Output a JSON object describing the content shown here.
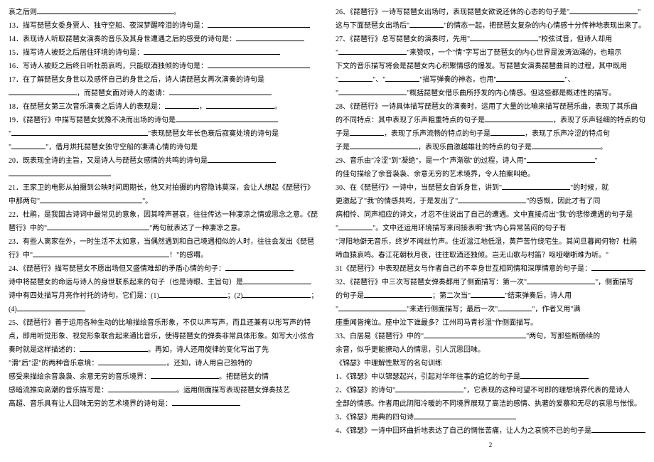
{
  "left": [
    "哀之后则________________________________。",
    "13．描写琵琶女委身贾人、独守空船、夜深梦醒啼泪的诗句是：________________________",
    "14．表现诗人听取琵琶女演奏的音乐及其身世遭遇之后的感受的诗句是：________________",
    "15．描写诗人被贬之后居住环境的诗句是：________________________________",
    "16．写诗人被贬之后终日听杜鹃哀鸣，只能取酒独倾的诗句是：________________________",
    "17．在了解琵琶女身世以及感怀自己的身世之后，诗人请琵琶女再次演奏的诗句是",
    "________________，而琵琶女面对诗人的邀请：________________________",
    "18．在琵琶女第三次音乐演奏之后诗人的表现是：________，________________。",
    "19．《琵琶行》中描写琵琶女犹豫不决而出场的诗句是________________________",
    "\"________________________________\"表现琵琶女年长色衰后寂寞处境的诗句是",
    "\"________\"，借月烘托琵琶女独守空船的凄清心情的诗句是",
    "20．既表现全诗的主旨，又是诗人与琵琶女感情的共鸣的诗句是________________",
    "________________________",
    "21．王家卫的电影从拍摄到公映时间周期长，他又对拍摄的内容隐讳莫深，会让人想起《琵琶行》",
    "中那两句\"________________________\"。",
    "22．杜鹃，是我国古诗词中最常见的意象，因其啼声甚哀，往往传达一种凄凉之情或思念之意。《琵",
    "琶行》中的\"________________________\"两句就表达了一种凄凉之意。",
    "23．有些人离家在外，一时生活不太如意，当偶然遇到和自己境遇相似的人时，往往会发出《琵琶",
    "行》中\"________________________________！\"的感喟。",
    "24、《琵琶行》描写琵琶女不愿出场但又盛情难却的矛盾心情的句子：________________",
    "诗中将琵琶女的命运与诗人的身世联系起来的句子（也是诗眼、主旨句）是________________",
    "诗中有四处描写月亮作衬托的诗句，它们是：(1)________________；(2)________________；(3)________",
    "(4)________________",
    "25、《琵琶行》善于运用各种生动的比喻描绘音乐形象，不仅以声写声，而且还兼有以形写声的特",
    "点，即用听觉形象、视觉形象联合起来通比音乐，使得琵琶女的弹奏非常具体形象。如写大小弦合",
    "奏时就是这样描述的：________________。再如，诗人还用旋律的变化写出了先",
    "\"滑\"后\"涩\"的两种音乐意境：________________。还如，诗人用自己独特的",
    "感受来描绘余音袅袅、余意无穷的音乐境界：________________。把琵琶女的情",
    "感暗流推向高潮的音乐描写是：________________。运用侧面描写表现琵琶女弹奏技艺",
    "高超、音乐具有让人回味无穷的艺术境界的诗句是：________________"
  ],
  "right": [
    "26、《琵琶行》一诗写琵琶女出场时，表现琵琶女欲说还休的心态的句子是\"________________\"",
    "这与下面琵琶女出场后\"________\"的情态一起，把琵琶女复杂的内心情感十分传神地表现出来了。",
    "27、《琵琶行》总写琵琶女的演奏时，先用\"________________\"校弦试音，但诗人却用",
    "\"________________\"来赞叹，一个\"情\"字写出了琵琶女的内心世界是波涛汹涌的，也暗示",
    "下文的音乐描写将会是琵琶女内心积聚情感的爆发。写琵琶女演奏琵琶曲目的过程，其中既用",
    "\"________\"、\"________\"描写弹奏的神态，也用\"________________\"、",
    "\"________________\"概括琵琶女借乐曲所抒发的内心情感。但这些都是概述性的描写。",
    "28、《琵琶行》一诗具体描写琵琶女的演奏时，运用了大量的比喻来描写琵琶乐曲，表现了其乐曲",
    "的不同特点：其中表现了乐声粗重特点的句子是________________，表现了乐声轻细的特点的句",
    "子是________，表现了乐声流畅的特点的句子是________，表现了乐声冷涩的特点句",
    "子是________________，表现乐曲激越雄壮的特点的句子是________________。",
    "29、音乐由\"冷涩\"到\"凝绝\"，是一个\"声渐歇\"的过程，诗人用\"________________\"",
    "的佳句描绘了余音袅袅、余意无穷的艺术境界，令人拍案叫绝。",
    "30、在《琵琶行》一诗中，当琵琶女自诉身世，讲到\"________________\"的时候，就",
    "更激起了\"我\"的情感共鸣，于是发出了\"________________\"的感慨，因此才有了同",
    "病相怜、同声相应的诗文，才忍不住说出了自己的遭遇。文中直接点出\"我\"的悲惨遭遇的句子是",
    "\"________\"。文中还运用环境描写来间接表明\"我\"内心异常苦闷的句子有",
    "\"浔阳地僻无音乐，终岁不闻丝竹声。住近湓江地低湿，黄芦苦竹绕宅生。其间旦暮闻何物？杜鹃",
    "啼血猿哀鸣。春江花朝秋月夜，往往取酒还独倾。岂无山歌与村笛？呕哑嘲哳难为听。\"",
    "31《琵琶行》中表现琵琶女与作者自己的不幸身世互相同情和深厚情意的句子是：________________",
    "32、《琵琶行》中三次写琵琶女弹奏都用了侧面描写：第一次\"________________\"，侧面描写",
    "的句子是________________；第二次当\"________\"结束弹奏后，诗人用",
    "\"________________\"来进行侧面描写；最后一次\"________\"，作者又用\"满",
    "座重闻皆掩泣。座中泣下谁最多？江州司马青衫湿\"作侧面描写。",
    "33、白居易《琵琶行》中的\"________________________\"两句，写那些断肠续的",
    "余音，似乎更能撩动人的情思，引人沉思回味。",
    "                              《锦瑟》中理解性默写的名句训练",
    "1、《锦瑟》中以锦瑟起兴，引起对华年往事的追忆的句子是________________",
    "2、《锦瑟》的诗句\"________________\"，它表现的这种可望不可即的理想境界代表的是诗人",
    "全部的情感。作者用此阴阳冷暖的不同境界展现了高洁的感情、执著的爱慕和无尽的哀思与怅恨。",
    "3、《锦瑟》用典的四句诗________________________",
    "4、《锦瑟》一诗中回环曲折地表达了自己的惆怅苦痛，让人为之哀惋不已的句子是________________"
  ],
  "pageNumber": "2"
}
